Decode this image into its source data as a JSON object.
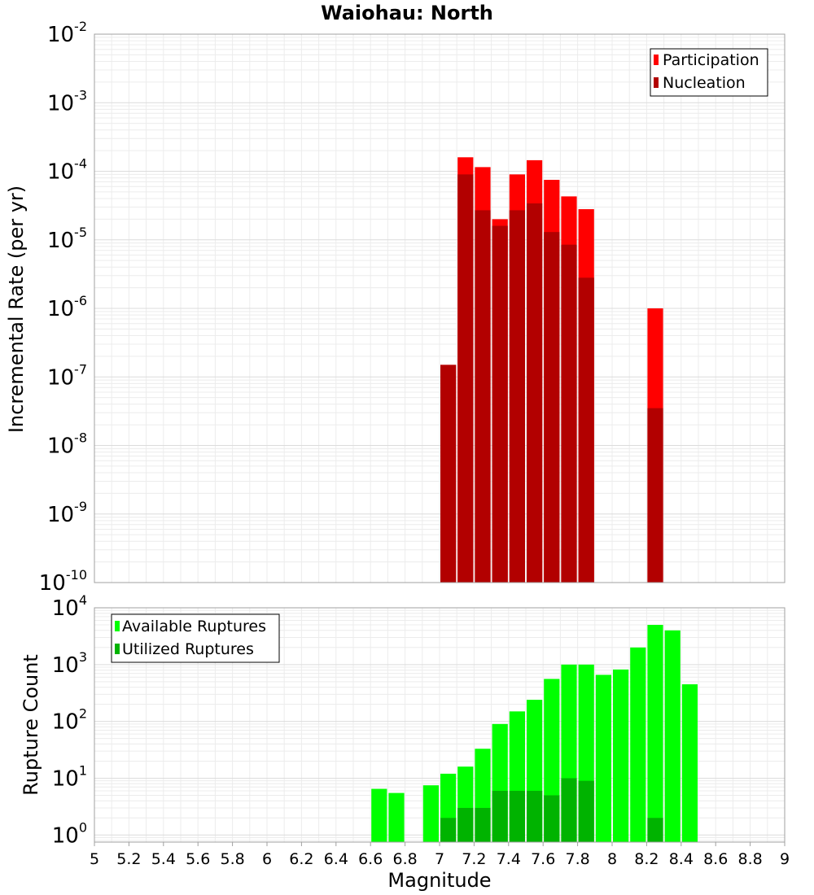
{
  "chart_data": [
    {
      "type": "bar",
      "title": "Waiohau: North",
      "ylabel": "Incremental Rate (per yr)",
      "xlabel": "",
      "yscale": "log",
      "ylim": [
        1e-10,
        0.01
      ],
      "xlim": [
        5,
        9
      ],
      "bin_width": 0.1,
      "grid": true,
      "legend_position": "top-right",
      "y_ticks": [
        {
          "base": "10",
          "exp": "-10"
        },
        {
          "base": "10",
          "exp": "-9"
        },
        {
          "base": "10",
          "exp": "-8"
        },
        {
          "base": "10",
          "exp": "-7"
        },
        {
          "base": "10",
          "exp": "-6"
        },
        {
          "base": "10",
          "exp": "-5"
        },
        {
          "base": "10",
          "exp": "-4"
        },
        {
          "base": "10",
          "exp": "-3"
        },
        {
          "base": "10",
          "exp": "-2"
        }
      ],
      "series": [
        {
          "name": "Participation",
          "color": "#ff0000",
          "x": [
            7.0,
            7.1,
            7.2,
            7.3,
            7.4,
            7.5,
            7.6,
            7.7,
            7.8,
            8.2
          ],
          "values": [
            1.5e-07,
            0.00016,
            0.000115,
            2e-05,
            9e-05,
            0.000145,
            7.5e-05,
            4.3e-05,
            2.8e-05,
            1e-06
          ]
        },
        {
          "name": "Nucleation",
          "color": "#b20000",
          "x": [
            7.0,
            7.1,
            7.2,
            7.3,
            7.4,
            7.5,
            7.6,
            7.7,
            7.8,
            8.2
          ],
          "values": [
            1.5e-07,
            9e-05,
            2.7e-05,
            1.6e-05,
            2.7e-05,
            3.4e-05,
            1.3e-05,
            8.5e-06,
            2.8e-06,
            3.5e-08
          ]
        }
      ]
    },
    {
      "type": "bar",
      "title": "",
      "ylabel": "Rupture Count",
      "xlabel": "Magnitude",
      "yscale": "log",
      "ylim": [
        0.75,
        10000
      ],
      "xlim": [
        5,
        9
      ],
      "bin_width": 0.1,
      "grid": true,
      "legend_position": "top-left",
      "x_tick_labels": [
        "5",
        "5.2",
        "5.4",
        "5.6",
        "5.8",
        "6",
        "6.2",
        "6.4",
        "6.6",
        "6.8",
        "7",
        "7.2",
        "7.4",
        "7.6",
        "7.8",
        "8",
        "8.2",
        "8.4",
        "8.6",
        "8.8",
        "9"
      ],
      "y_ticks": [
        {
          "base": "10",
          "exp": "0"
        },
        {
          "base": "10",
          "exp": "1"
        },
        {
          "base": "10",
          "exp": "2"
        },
        {
          "base": "10",
          "exp": "3"
        },
        {
          "base": "10",
          "exp": "4"
        }
      ],
      "series": [
        {
          "name": "Available Ruptures",
          "color": "#00ff00",
          "x": [
            6.6,
            6.7,
            6.9,
            7.0,
            7.1,
            7.2,
            7.3,
            7.4,
            7.5,
            7.6,
            7.7,
            7.8,
            7.9,
            8.0,
            8.1,
            8.2,
            8.3,
            8.4
          ],
          "values": [
            6.5,
            5.5,
            7.5,
            12,
            16,
            33,
            90,
            150,
            240,
            560,
            1000,
            1000,
            660,
            820,
            2000,
            5000,
            4000,
            450
          ]
        },
        {
          "name": "Utilized Ruptures",
          "color": "#00b300",
          "x": [
            7.0,
            7.1,
            7.2,
            7.3,
            7.4,
            7.5,
            7.6,
            7.7,
            7.8,
            8.2
          ],
          "values": [
            2,
            3,
            3,
            6,
            6,
            6,
            5,
            10,
            9,
            2
          ]
        }
      ]
    }
  ]
}
